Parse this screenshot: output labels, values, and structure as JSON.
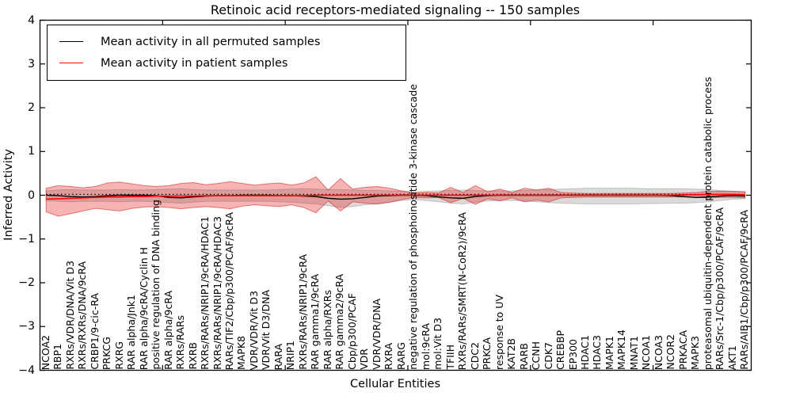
{
  "title": "Retinoic acid receptors-mediated signaling -- 150 samples",
  "axes": {
    "ylabel": "Inferred Activity",
    "xlabel": "Cellular Entities",
    "yticks": [
      "4",
      "3",
      "2",
      "1",
      "0",
      "−1",
      "−2",
      "−3",
      "−4"
    ]
  },
  "legend": {
    "items": [
      {
        "label": "Mean activity in all permuted samples",
        "color": "#000000"
      },
      {
        "label": "Mean activity in patient samples",
        "color": "#ff0000"
      }
    ]
  },
  "colors": {
    "permuted_line": "#000000",
    "patient_line": "#ff0000",
    "permuted_band_fill": "rgba(140,140,140,0.32)",
    "patient_band_fill": "rgba(228,36,36,0.34)",
    "patient_band_edge": "rgba(214,28,28,0.55)",
    "permuted_band_edge": "rgba(140,140,140,0.45)"
  },
  "chart_data": {
    "type": "line",
    "title": "Retinoic acid receptors-mediated signaling -- 150 samples",
    "xlabel": "Cellular Entities",
    "ylabel": "Inferred Activity",
    "ylim": [
      -4,
      4
    ],
    "ytick_values": [
      4,
      3,
      2,
      1,
      0,
      -1,
      -2,
      -3,
      -4
    ],
    "legend_position": "upper left",
    "grid": false,
    "dotted_baseline": 0.02,
    "categories": [
      "NCOA2",
      "RBP1",
      "RXRs/VDR/DNA/Vit D3",
      "RXRs/RXRs/DNA/9cRA",
      "CRBP1/9-cic-RA",
      "PRKCG",
      "RXRG",
      "RAR alpha/Jnk1",
      "RAR alpha/9cRA/Cyclin H",
      "positive regulation of DNA binding",
      "RAR alpha/9cRA",
      "RXRs/RARs",
      "RXRB",
      "RXRs/RARs/NRIP1/9cRA/HDAC1",
      "RXRs/RARs/NRIP1/9cRA/HDAC3",
      "RARs/TIF2/Cbp/p300/PCAF/9cRA",
      "MAPK8",
      "VDR/VDR/Vit D3",
      "VDR/Vit D3/DNA",
      "RARA",
      "NRIP1",
      "RXRs/RARs/NRIP1/9cRA",
      "RAR gamma1/9cRA",
      "RAR alpha/RXRs",
      "RAR gamma2/9cRA",
      "Cbp/p300/PCAF",
      "VDR",
      "VDR/VDR/DNA",
      "RXRA",
      "RARG",
      "negative regulation of phosphoinositide 3-kinase cascade",
      "mol:9cRA",
      "mol:Vit D3",
      "TFIIH",
      "RXRs/RARs/SMRT(N-CoR2)/9cRA",
      "CDC2",
      "PRKCA",
      "response to UV",
      "KAT2B",
      "RARB",
      "CCNH",
      "CDK7",
      "CREBBP",
      "EP300",
      "HDAC1",
      "HDAC3",
      "MAPK1",
      "MAPK14",
      "MNAT1",
      "NCOA1",
      "NCOA3",
      "NCOR2",
      "PRKACA",
      "MAPK3",
      "proteasomal ubiquitin-dependent protein catabolic process",
      "RARs/Src-1/Cbp/p300/PCAF/9cRA",
      "AKT1",
      "RARs/AIB1/Cbp/p300/PCAF/9cRA"
    ],
    "series": [
      {
        "name": "Mean activity in all permuted samples",
        "color": "#000000",
        "style": "solid",
        "values": [
          0.0,
          -0.01,
          -0.03,
          -0.04,
          -0.03,
          -0.01,
          0.0,
          0.0,
          0.0,
          -0.01,
          -0.05,
          -0.06,
          -0.04,
          -0.02,
          -0.01,
          -0.01,
          0.0,
          0.0,
          0.0,
          -0.01,
          -0.01,
          -0.02,
          -0.03,
          -0.07,
          -0.09,
          -0.08,
          -0.05,
          -0.02,
          -0.01,
          0.0,
          0.0,
          -0.01,
          -0.04,
          -0.06,
          -0.07,
          -0.03,
          -0.01,
          0.0,
          0.0,
          0.0,
          0.0,
          0.0,
          0.0,
          0.0,
          0.0,
          0.0,
          0.0,
          0.0,
          0.0,
          0.0,
          0.0,
          -0.01,
          -0.03,
          -0.05,
          -0.04,
          -0.02,
          -0.01,
          -0.02
        ]
      },
      {
        "name": "Mean activity in patient samples",
        "color": "#ff0000",
        "style": "solid",
        "values": [
          -0.09,
          -0.08,
          -0.07,
          -0.06,
          -0.05,
          -0.04,
          -0.04,
          -0.03,
          -0.03,
          -0.02,
          -0.02,
          -0.02,
          -0.02,
          -0.01,
          -0.01,
          -0.01,
          -0.01,
          -0.01,
          -0.01,
          -0.01,
          -0.01,
          -0.01,
          0.0,
          0.0,
          0.0,
          0.0,
          0.0,
          0.0,
          0.0,
          0.0,
          0.0,
          0.0,
          0.0,
          0.0,
          0.0,
          0.0,
          0.0,
          0.0,
          0.0,
          0.0,
          0.0,
          0.0,
          0.0,
          0.0,
          0.0,
          0.0,
          0.0,
          0.0,
          0.0,
          0.0,
          0.0,
          0.0,
          0.01,
          0.01,
          0.02,
          0.02,
          0.02,
          0.01
        ]
      }
    ],
    "bands": [
      {
        "name": "permuted-activity-band",
        "upper": [
          0.1,
          0.12,
          0.13,
          0.12,
          0.12,
          0.12,
          0.13,
          0.12,
          0.12,
          0.13,
          0.14,
          0.15,
          0.13,
          0.12,
          0.12,
          0.12,
          0.12,
          0.12,
          0.12,
          0.13,
          0.14,
          0.15,
          0.14,
          0.13,
          0.13,
          0.12,
          0.11,
          0.11,
          0.1,
          0.09,
          0.08,
          0.09,
          0.1,
          0.11,
          0.12,
          0.11,
          0.1,
          0.1,
          0.1,
          0.11,
          0.12,
          0.13,
          0.14,
          0.15,
          0.16,
          0.16,
          0.16,
          0.16,
          0.16,
          0.15,
          0.15,
          0.15,
          0.15,
          0.14,
          0.13,
          0.11,
          0.09,
          0.08
        ],
        "lower": [
          -0.12,
          -0.14,
          -0.15,
          -0.14,
          -0.14,
          -0.14,
          -0.15,
          -0.14,
          -0.14,
          -0.15,
          -0.17,
          -0.18,
          -0.16,
          -0.14,
          -0.14,
          -0.14,
          -0.14,
          -0.14,
          -0.14,
          -0.15,
          -0.16,
          -0.18,
          -0.2,
          -0.24,
          -0.28,
          -0.26,
          -0.22,
          -0.2,
          -0.16,
          -0.12,
          -0.1,
          -0.12,
          -0.15,
          -0.18,
          -0.2,
          -0.16,
          -0.13,
          -0.12,
          -0.12,
          -0.13,
          -0.15,
          -0.17,
          -0.18,
          -0.19,
          -0.2,
          -0.2,
          -0.2,
          -0.2,
          -0.2,
          -0.19,
          -0.19,
          -0.18,
          -0.18,
          -0.17,
          -0.15,
          -0.12,
          -0.09,
          -0.08
        ]
      },
      {
        "name": "patient-activity-band",
        "upper": [
          0.16,
          0.22,
          0.2,
          0.17,
          0.2,
          0.28,
          0.3,
          0.26,
          0.22,
          0.2,
          0.22,
          0.27,
          0.29,
          0.24,
          0.27,
          0.31,
          0.27,
          0.23,
          0.26,
          0.28,
          0.23,
          0.28,
          0.42,
          0.12,
          0.38,
          0.14,
          0.18,
          0.2,
          0.16,
          0.1,
          0.05,
          0.06,
          0.05,
          0.18,
          0.06,
          0.22,
          0.08,
          0.14,
          0.06,
          0.16,
          0.12,
          0.16,
          0.06,
          0.05,
          0.04,
          0.04,
          0.04,
          0.04,
          0.04,
          0.04,
          0.04,
          0.04,
          0.05,
          0.06,
          0.09,
          0.09,
          0.09,
          0.08
        ],
        "lower": [
          -0.38,
          -0.48,
          -0.42,
          -0.36,
          -0.3,
          -0.33,
          -0.36,
          -0.3,
          -0.27,
          -0.26,
          -0.28,
          -0.31,
          -0.28,
          -0.26,
          -0.28,
          -0.31,
          -0.25,
          -0.22,
          -0.24,
          -0.26,
          -0.22,
          -0.28,
          -0.4,
          -0.13,
          -0.36,
          -0.15,
          -0.18,
          -0.2,
          -0.16,
          -0.1,
          -0.05,
          -0.06,
          -0.05,
          -0.17,
          -0.07,
          -0.21,
          -0.08,
          -0.13,
          -0.06,
          -0.15,
          -0.11,
          -0.15,
          -0.06,
          -0.05,
          -0.04,
          -0.04,
          -0.04,
          -0.04,
          -0.04,
          -0.04,
          -0.04,
          -0.04,
          -0.04,
          -0.05,
          -0.06,
          -0.05,
          -0.05,
          -0.06
        ]
      }
    ]
  }
}
